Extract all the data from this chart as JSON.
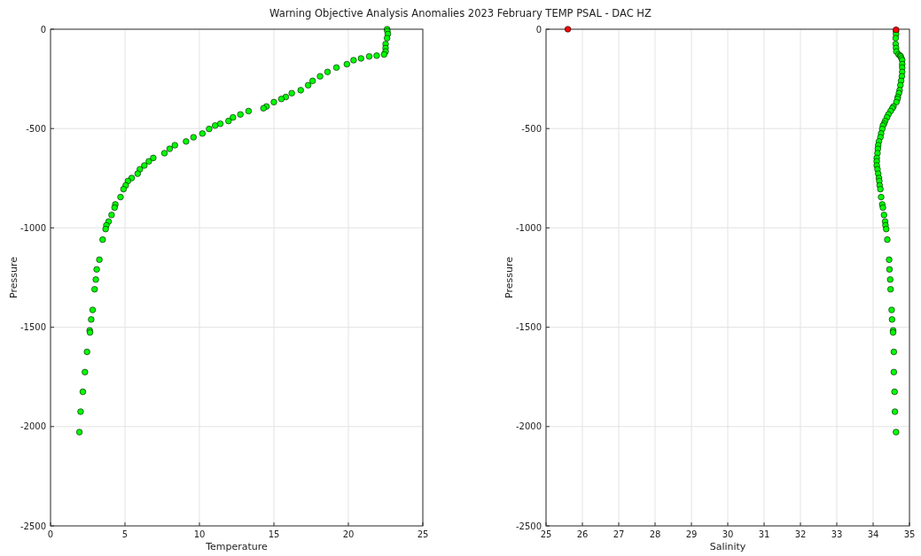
{
  "chart_data": [
    {
      "type": "scatter",
      "title": "Warning Objective Analysis Anomalies 2023 February TEMP PSAL - DAC HZ",
      "xlabel": "Temperature",
      "ylabel": "Pressure",
      "xlim": [
        0,
        25
      ],
      "xticks": [
        0,
        5,
        10,
        15,
        20,
        25
      ],
      "ylim": [
        -2500,
        0
      ],
      "yticks": [
        -2500,
        -2000,
        -1500,
        -1000,
        -500,
        0
      ],
      "grid": true,
      "marker": "circle",
      "series": [
        {
          "color": "#00ff00",
          "x": [
            22.6,
            22.62,
            22.65,
            22.6,
            22.5,
            22.5,
            22.5,
            22.4,
            21.9,
            21.4,
            20.85,
            20.35,
            19.9,
            19.2,
            18.6,
            18.1,
            17.6,
            17.3,
            16.8,
            16.2,
            15.8,
            15.5,
            15.0,
            14.5,
            14.3,
            13.3,
            12.75,
            12.25,
            11.95,
            11.4,
            11.05,
            10.65,
            10.2,
            9.6,
            9.1,
            8.35,
            8.0,
            7.65,
            6.9,
            6.6,
            6.3,
            6.0,
            5.85,
            5.45,
            5.2,
            5.05,
            4.9,
            4.7,
            4.35,
            4.3,
            4.1,
            3.9,
            3.75,
            3.7,
            3.5,
            3.28,
            3.1,
            3.04,
            2.96,
            2.83,
            2.73,
            2.63,
            2.65,
            2.45,
            2.31,
            2.17,
            2.02,
            1.94
          ],
          "values": [
            0,
            -10,
            -24,
            -45,
            -75,
            -95,
            -112,
            -127,
            -133,
            -137,
            -147,
            -156,
            -176,
            -193,
            -215,
            -237,
            -260,
            -282,
            -307,
            -322,
            -341,
            -351,
            -367,
            -389,
            -398,
            -412,
            -429,
            -444,
            -462,
            -476,
            -485,
            -502,
            -525,
            -544,
            -565,
            -584,
            -602,
            -624,
            -648,
            -665,
            -686,
            -705,
            -727,
            -749,
            -764,
            -786,
            -805,
            -845,
            -882,
            -898,
            -935,
            -968,
            -987,
            -1006,
            -1059,
            -1160,
            -1209,
            -1260,
            -1309,
            -1413,
            -1461,
            -1516,
            -1526,
            -1624,
            -1726,
            -1825,
            -1925,
            -2028
          ]
        }
      ]
    },
    {
      "type": "scatter",
      "xlabel": "Salinity",
      "ylabel": "Pressure",
      "xlim": [
        25,
        35
      ],
      "xticks": [
        25,
        26,
        27,
        28,
        29,
        30,
        31,
        32,
        33,
        34,
        35
      ],
      "ylim": [
        -2500,
        0
      ],
      "yticks": [
        -2500,
        -2000,
        -1500,
        -1000,
        -500,
        0
      ],
      "grid": true,
      "marker": "circle",
      "series": [
        {
          "color": "#00ff00",
          "x": [
            34.63,
            34.63,
            34.62,
            34.62,
            34.63,
            34.64,
            34.7,
            34.74,
            34.76,
            34.78,
            34.8,
            34.8,
            34.8,
            34.8,
            34.79,
            34.77,
            34.75,
            34.73,
            34.71,
            34.68,
            34.67,
            34.64,
            34.56,
            34.53,
            34.48,
            34.42,
            34.38,
            34.33,
            34.3,
            34.27,
            34.25,
            34.22,
            34.2,
            34.16,
            34.14,
            34.13,
            34.12,
            34.1,
            34.1,
            34.1,
            34.12,
            34.14,
            34.16,
            34.17,
            34.18,
            34.2,
            34.22,
            34.25,
            34.27,
            34.3,
            34.33,
            34.34,
            34.36,
            34.39,
            34.44,
            34.45,
            34.47,
            34.48,
            34.51,
            34.52,
            34.55,
            34.55,
            34.57,
            34.57,
            34.59,
            34.6,
            34.63
          ],
          "values": [
            -10,
            -24,
            -45,
            -75,
            -95,
            -112,
            -127,
            -133,
            -137,
            -147,
            -156,
            -176,
            -193,
            -215,
            -237,
            -260,
            -282,
            -307,
            -322,
            -341,
            -351,
            -367,
            -389,
            -398,
            -412,
            -429,
            -444,
            -462,
            -476,
            -485,
            -502,
            -525,
            -544,
            -565,
            -584,
            -602,
            -624,
            -648,
            -665,
            -686,
            -705,
            -727,
            -749,
            -764,
            -786,
            -805,
            -845,
            -882,
            -898,
            -935,
            -968,
            -987,
            -1006,
            -1059,
            -1160,
            -1209,
            -1260,
            -1309,
            -1413,
            -1461,
            -1516,
            -1526,
            -1624,
            -1726,
            -1825,
            -1925,
            -2028
          ]
        },
        {
          "color": "#ff0000",
          "x": [
            25.6,
            34.63
          ],
          "values": [
            0,
            -3
          ]
        }
      ]
    }
  ]
}
